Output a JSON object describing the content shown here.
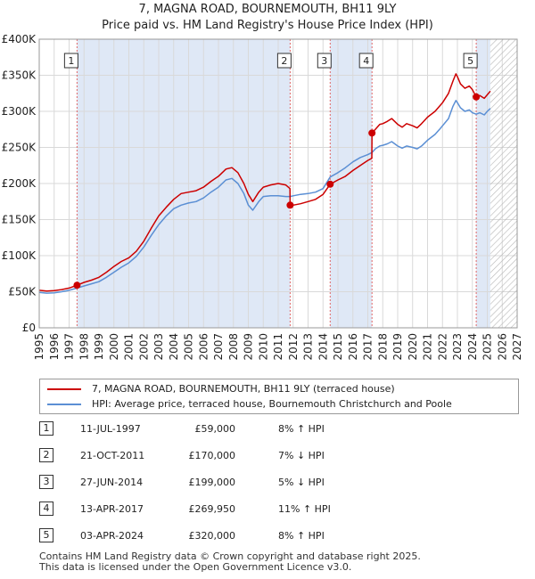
{
  "title": {
    "line1": "7, MAGNA ROAD, BOURNEMOUTH, BH11 9LY",
    "line2": "Price paid vs. HM Land Registry's House Price Index (HPI)"
  },
  "chart_data": {
    "type": "line",
    "title": "7, MAGNA ROAD, BOURNEMOUTH, BH11 9LY — Price paid vs. HM Land Registry's House Price Index (HPI)",
    "xlabel": "",
    "ylabel": "",
    "xlim": [
      1995,
      2027
    ],
    "ylim": [
      0,
      400000
    ],
    "x_ticks": [
      "1995",
      "1996",
      "1997",
      "1998",
      "1999",
      "2000",
      "2001",
      "2002",
      "2003",
      "2004",
      "2005",
      "2006",
      "2007",
      "2008",
      "2009",
      "2010",
      "2011",
      "2012",
      "2013",
      "2014",
      "2015",
      "2016",
      "2017",
      "2018",
      "2019",
      "2020",
      "2021",
      "2022",
      "2023",
      "2024",
      "2025",
      "2026",
      "2027"
    ],
    "y_ticks": [
      {
        "value": 0,
        "label": "£0"
      },
      {
        "value": 50000,
        "label": "£50K"
      },
      {
        "value": 100000,
        "label": "£100K"
      },
      {
        "value": 150000,
        "label": "£150K"
      },
      {
        "value": 200000,
        "label": "£200K"
      },
      {
        "value": 250000,
        "label": "£250K"
      },
      {
        "value": 300000,
        "label": "£300K"
      },
      {
        "value": 350000,
        "label": "£350K"
      },
      {
        "value": 400000,
        "label": "£400K"
      }
    ],
    "grid": true,
    "data_end_year": 2025.2,
    "colors": {
      "property": "#cc0000",
      "hpi": "#5b8fd4",
      "shade": "#dfe8f6",
      "sale_line": "#e06666",
      "hatch": "#b5b5b5",
      "grid": "#d9d9d9"
    },
    "series": [
      {
        "name": "7, MAGNA ROAD, BOURNEMOUTH, BH11 9LY (terraced house)",
        "color": "#cc0000",
        "points": [
          [
            1995.0,
            52000
          ],
          [
            1995.5,
            51000
          ],
          [
            1996.0,
            51500
          ],
          [
            1996.5,
            53000
          ],
          [
            1997.0,
            55000
          ],
          [
            1997.53,
            59000
          ],
          [
            1998.0,
            63000
          ],
          [
            1998.5,
            66000
          ],
          [
            1999.0,
            70000
          ],
          [
            1999.5,
            77000
          ],
          [
            2000.0,
            85000
          ],
          [
            2000.5,
            92000
          ],
          [
            2001.0,
            97000
          ],
          [
            2001.5,
            106000
          ],
          [
            2002.0,
            120000
          ],
          [
            2002.5,
            138000
          ],
          [
            2003.0,
            155000
          ],
          [
            2003.5,
            167000
          ],
          [
            2004.0,
            178000
          ],
          [
            2004.5,
            186000
          ],
          [
            2005.0,
            188000
          ],
          [
            2005.5,
            190000
          ],
          [
            2006.0,
            195000
          ],
          [
            2006.5,
            203000
          ],
          [
            2007.0,
            210000
          ],
          [
            2007.5,
            220000
          ],
          [
            2007.9,
            222000
          ],
          [
            2008.3,
            215000
          ],
          [
            2008.7,
            200000
          ],
          [
            2009.0,
            185000
          ],
          [
            2009.3,
            175000
          ],
          [
            2009.7,
            188000
          ],
          [
            2010.0,
            195000
          ],
          [
            2010.5,
            198000
          ],
          [
            2011.0,
            200000
          ],
          [
            2011.5,
            198000
          ],
          [
            2011.79,
            193000
          ],
          [
            2011.8,
            170000
          ],
          [
            2012.0,
            170000
          ],
          [
            2012.5,
            172000
          ],
          [
            2013.0,
            175000
          ],
          [
            2013.5,
            178000
          ],
          [
            2014.0,
            185000
          ],
          [
            2014.48,
            199000
          ],
          [
            2015.0,
            205000
          ],
          [
            2015.5,
            210000
          ],
          [
            2016.0,
            218000
          ],
          [
            2016.5,
            225000
          ],
          [
            2017.0,
            232000
          ],
          [
            2017.27,
            235000
          ],
          [
            2017.28,
            269950
          ],
          [
            2017.5,
            275000
          ],
          [
            2017.8,
            282000
          ],
          [
            2018.0,
            283000
          ],
          [
            2018.3,
            286000
          ],
          [
            2018.6,
            290000
          ],
          [
            2019.0,
            282000
          ],
          [
            2019.3,
            278000
          ],
          [
            2019.6,
            283000
          ],
          [
            2020.0,
            280000
          ],
          [
            2020.3,
            277000
          ],
          [
            2020.6,
            283000
          ],
          [
            2021.0,
            292000
          ],
          [
            2021.5,
            300000
          ],
          [
            2021.8,
            307000
          ],
          [
            2022.0,
            312000
          ],
          [
            2022.4,
            325000
          ],
          [
            2022.7,
            342000
          ],
          [
            2022.9,
            352000
          ],
          [
            2023.0,
            348000
          ],
          [
            2023.2,
            338000
          ],
          [
            2023.5,
            332000
          ],
          [
            2023.8,
            335000
          ],
          [
            2024.0,
            330000
          ],
          [
            2024.26,
            320000
          ],
          [
            2024.5,
            322000
          ],
          [
            2024.8,
            318000
          ],
          [
            2025.0,
            323000
          ],
          [
            2025.2,
            328000
          ]
        ]
      },
      {
        "name": "HPI: Average price, terraced house, Bournemouth Christchurch and Poole",
        "color": "#5b8fd4",
        "points": [
          [
            1995.0,
            49000
          ],
          [
            1995.5,
            48000
          ],
          [
            1996.0,
            48500
          ],
          [
            1996.5,
            50000
          ],
          [
            1997.0,
            52000
          ],
          [
            1997.53,
            55000
          ],
          [
            1998.0,
            58000
          ],
          [
            1998.5,
            61000
          ],
          [
            1999.0,
            64000
          ],
          [
            1999.5,
            70000
          ],
          [
            2000.0,
            77000
          ],
          [
            2000.5,
            84000
          ],
          [
            2001.0,
            90000
          ],
          [
            2001.5,
            99000
          ],
          [
            2002.0,
            112000
          ],
          [
            2002.5,
            128000
          ],
          [
            2003.0,
            143000
          ],
          [
            2003.5,
            155000
          ],
          [
            2004.0,
            165000
          ],
          [
            2004.5,
            170000
          ],
          [
            2005.0,
            173000
          ],
          [
            2005.5,
            175000
          ],
          [
            2006.0,
            180000
          ],
          [
            2006.5,
            188000
          ],
          [
            2007.0,
            195000
          ],
          [
            2007.5,
            205000
          ],
          [
            2007.9,
            207000
          ],
          [
            2008.3,
            200000
          ],
          [
            2008.7,
            186000
          ],
          [
            2009.0,
            170000
          ],
          [
            2009.3,
            163000
          ],
          [
            2009.7,
            175000
          ],
          [
            2010.0,
            182000
          ],
          [
            2010.5,
            183000
          ],
          [
            2011.0,
            183000
          ],
          [
            2011.5,
            182000
          ],
          [
            2011.8,
            182000
          ],
          [
            2012.0,
            183000
          ],
          [
            2012.5,
            185000
          ],
          [
            2013.0,
            186000
          ],
          [
            2013.5,
            188000
          ],
          [
            2014.0,
            193000
          ],
          [
            2014.48,
            209000
          ],
          [
            2015.0,
            215000
          ],
          [
            2015.5,
            222000
          ],
          [
            2016.0,
            230000
          ],
          [
            2016.5,
            236000
          ],
          [
            2017.0,
            240000
          ],
          [
            2017.28,
            243000
          ],
          [
            2017.5,
            248000
          ],
          [
            2017.8,
            252000
          ],
          [
            2018.0,
            253000
          ],
          [
            2018.3,
            255000
          ],
          [
            2018.6,
            258000
          ],
          [
            2019.0,
            252000
          ],
          [
            2019.3,
            249000
          ],
          [
            2019.6,
            252000
          ],
          [
            2020.0,
            250000
          ],
          [
            2020.3,
            248000
          ],
          [
            2020.6,
            252000
          ],
          [
            2021.0,
            260000
          ],
          [
            2021.5,
            268000
          ],
          [
            2021.8,
            275000
          ],
          [
            2022.0,
            280000
          ],
          [
            2022.4,
            290000
          ],
          [
            2022.7,
            307000
          ],
          [
            2022.9,
            315000
          ],
          [
            2023.0,
            312000
          ],
          [
            2023.2,
            305000
          ],
          [
            2023.5,
            300000
          ],
          [
            2023.8,
            302000
          ],
          [
            2024.0,
            298000
          ],
          [
            2024.26,
            296000
          ],
          [
            2024.5,
            298000
          ],
          [
            2024.8,
            295000
          ],
          [
            2025.0,
            300000
          ],
          [
            2025.2,
            304000
          ]
        ]
      }
    ],
    "sales": [
      {
        "num": "1",
        "date": "11-JUL-1997",
        "price": "£59,000",
        "hpi": "8% ↑ HPI",
        "x": 1997.53,
        "y": 59000
      },
      {
        "num": "2",
        "date": "21-OCT-2011",
        "price": "£170,000",
        "hpi": "7% ↓ HPI",
        "x": 2011.8,
        "y": 170000
      },
      {
        "num": "3",
        "date": "27-JUN-2014",
        "price": "£199,000",
        "hpi": "5% ↓ HPI",
        "x": 2014.48,
        "y": 199000
      },
      {
        "num": "4",
        "date": "13-APR-2017",
        "price": "£269,950",
        "hpi": "11% ↑ HPI",
        "x": 2017.28,
        "y": 269950
      },
      {
        "num": "5",
        "date": "03-APR-2024",
        "price": "£320,000",
        "hpi": "8% ↑ HPI",
        "x": 2024.26,
        "y": 320000
      }
    ],
    "shaded_ranges": [
      [
        1997.53,
        2011.8
      ],
      [
        2014.48,
        2017.28
      ],
      [
        2024.26,
        2025.2
      ]
    ]
  },
  "legend": {
    "property_label": "7, MAGNA ROAD, BOURNEMOUTH, BH11 9LY (terraced house)",
    "hpi_label": "HPI: Average price, terraced house, Bournemouth Christchurch and Poole"
  },
  "footer": {
    "line1": "Contains HM Land Registry data © Crown copyright and database right 2025.",
    "line2": "This data is licensed under the Open Government Licence v3.0."
  }
}
